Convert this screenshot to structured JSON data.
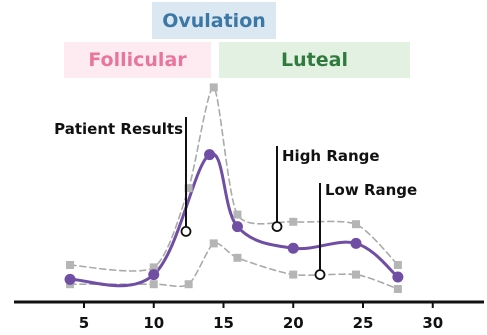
{
  "phases": {
    "follicular": "Follicular",
    "ovulation": "Ovulation",
    "luteal": "Luteal"
  },
  "chart_data": {
    "type": "line",
    "title": "",
    "xlabel": "",
    "ylabel": "",
    "xlim": [
      0,
      33
    ],
    "ylim": [
      0,
      100
    ],
    "x_ticks": [
      5,
      10,
      15,
      20,
      25,
      30
    ],
    "grid": false,
    "series": [
      {
        "name": "Patient Results",
        "color": "#6f4ea3",
        "style": "solid",
        "marker": "circle",
        "x": [
          4,
          10,
          14,
          16,
          20,
          24.5,
          27.5
        ],
        "y": [
          4,
          6,
          56,
          26,
          17,
          19,
          5
        ]
      },
      {
        "name": "High Range",
        "color": "#aaaaaa",
        "style": "dashed",
        "marker": "square",
        "x": [
          4,
          10,
          12.5,
          14.3,
          16,
          20,
          24.5,
          27.5
        ],
        "y": [
          10,
          9,
          42,
          84,
          31,
          28,
          27,
          10
        ]
      },
      {
        "name": "Low Range",
        "color": "#aaaaaa",
        "style": "dashed",
        "marker": "square",
        "x": [
          4,
          10,
          12.5,
          14.3,
          16,
          20,
          24.5,
          27.5
        ],
        "y": [
          2,
          2,
          2,
          19,
          13,
          6,
          6,
          0
        ]
      }
    ],
    "callouts": [
      {
        "label": "Patient Results",
        "series": "Patient Results",
        "x": 12.5,
        "y": 24
      },
      {
        "label": "High Range",
        "series": "High Range",
        "x": 18.7,
        "y": 26
      },
      {
        "label": "Low Range",
        "series": "Low Range",
        "x": 21.9,
        "y": 6
      }
    ]
  }
}
